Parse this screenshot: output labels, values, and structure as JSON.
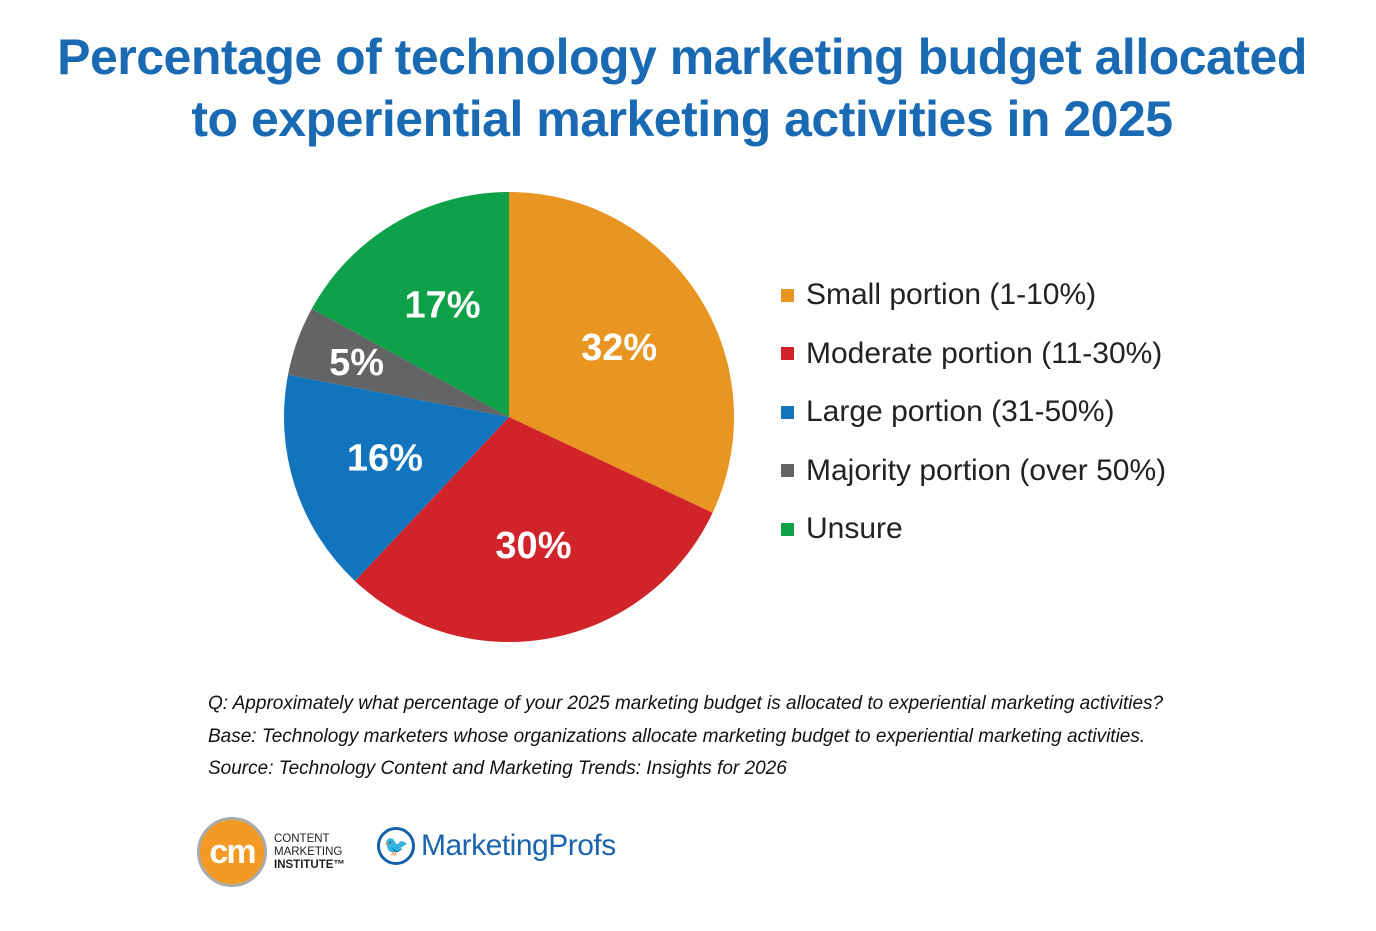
{
  "chart_data": {
    "type": "pie",
    "title_lines": [
      "Percentage of technology marketing budget allocated",
      "to experiential marketing activities in 2025"
    ],
    "slices": [
      {
        "label": "Small portion (1-10%)",
        "value": 32,
        "display": "32%",
        "color": "#e89522"
      },
      {
        "label": "Moderate portion (11-30%)",
        "value": 30,
        "display": "30%",
        "color": "#d0232a"
      },
      {
        "label": "Large portion (31-50%)",
        "value": 16,
        "display": "16%",
        "color": "#1174bd"
      },
      {
        "label": "Majority portion (over 50%)",
        "value": 5,
        "display": "5%",
        "color": "#636466"
      },
      {
        "label": "Unsure",
        "value": 17,
        "display": "17%",
        "color": "#0fa04a"
      }
    ],
    "legend_placement": "right",
    "start_angle": "12 o'clock, clockwise"
  },
  "notes": [
    "Q: Approximately what percentage of your 2025 marketing budget is allocated to experiential marketing activities?",
    "Base: Technology marketers whose organizations allocate marketing budget to experiential marketing activities.",
    "Source: Technology Content and Marketing Trends: Insights for 2026"
  ],
  "logos": {
    "cmi": {
      "mark": "cm",
      "lines": [
        "CONTENT",
        "MARKETING",
        "INSTITUTE™"
      ]
    },
    "marketingprofs": {
      "name": "MarketingProfs",
      "icon": "bird-icon"
    }
  }
}
